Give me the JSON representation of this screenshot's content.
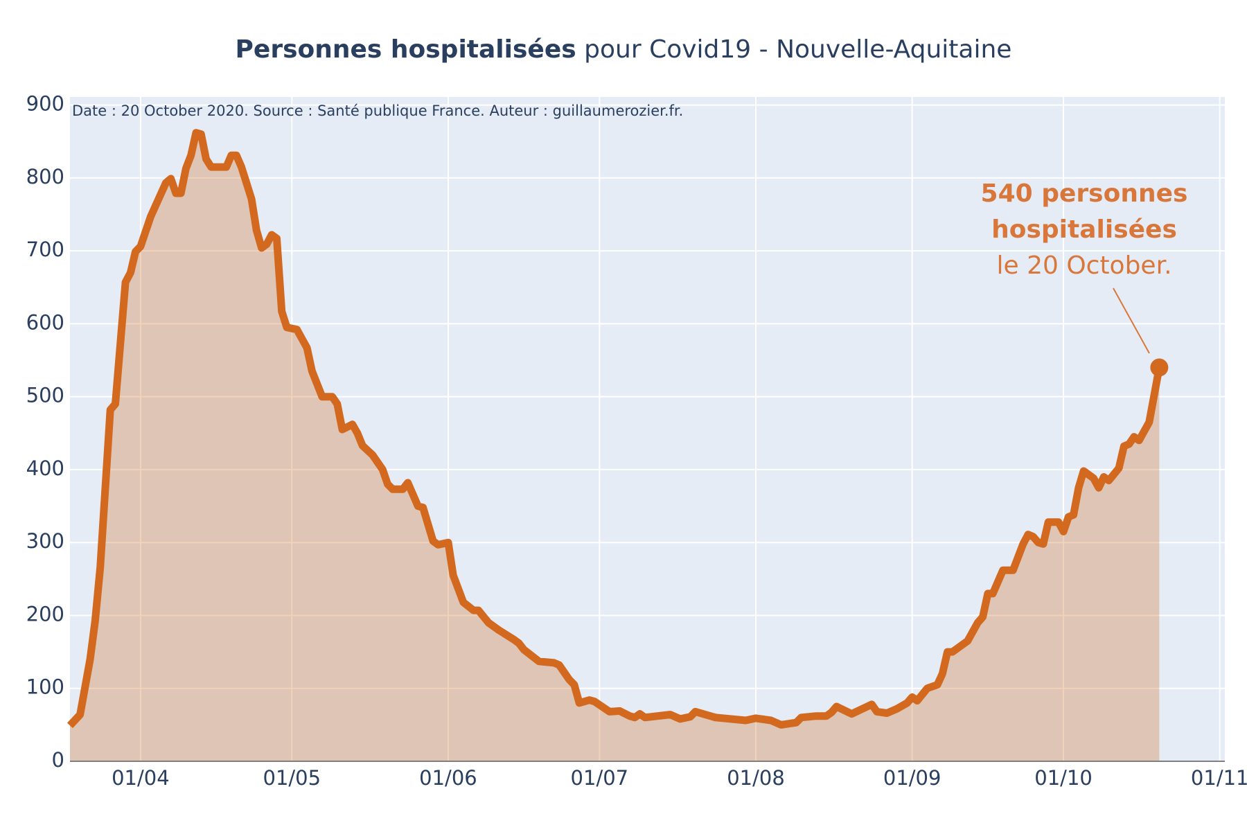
{
  "chart_data": {
    "type": "line",
    "title_bold": "Personnes hospitalisées",
    "title_rest": "pour Covid19 - Nouvelle-Aquitaine",
    "note": "Date : 20 October 2020. Source : Santé publique France. Auteur : guillaumerozier.fr.",
    "annotation": [
      "540 personnes",
      "hospitalisées",
      "le 20 October."
    ],
    "color": "#d2691e",
    "fill": true,
    "grid": true,
    "x": [
      "2020-03-18",
      "2020-03-20",
      "2020-03-22",
      "2020-03-23",
      "2020-03-24",
      "2020-03-26",
      "2020-03-27",
      "2020-03-29",
      "2020-03-30",
      "2020-03-31",
      "2020-04-01",
      "2020-04-03",
      "2020-04-06",
      "2020-04-07",
      "2020-04-08",
      "2020-04-09",
      "2020-04-10",
      "2020-04-11",
      "2020-04-12",
      "2020-04-13",
      "2020-04-14",
      "2020-04-15",
      "2020-04-18",
      "2020-04-19",
      "2020-04-20",
      "2020-04-21",
      "2020-04-23",
      "2020-04-24",
      "2020-04-25",
      "2020-04-26",
      "2020-04-27",
      "2020-04-28",
      "2020-04-29",
      "2020-04-30",
      "2020-05-02",
      "2020-05-04",
      "2020-05-05",
      "2020-05-07",
      "2020-05-09",
      "2020-05-10",
      "2020-05-11",
      "2020-05-13",
      "2020-05-14",
      "2020-05-15",
      "2020-05-17",
      "2020-05-19",
      "2020-05-20",
      "2020-05-21",
      "2020-05-23",
      "2020-05-24",
      "2020-05-26",
      "2020-05-27",
      "2020-05-29",
      "2020-05-30",
      "2020-06-01",
      "2020-06-02",
      "2020-06-04",
      "2020-06-06",
      "2020-06-07",
      "2020-06-09",
      "2020-06-11",
      "2020-06-14",
      "2020-06-15",
      "2020-06-16",
      "2020-06-19",
      "2020-06-22",
      "2020-06-23",
      "2020-06-25",
      "2020-06-26",
      "2020-06-27",
      "2020-06-29",
      "2020-06-30",
      "2020-07-03",
      "2020-07-05",
      "2020-07-07",
      "2020-07-08",
      "2020-07-09",
      "2020-07-10",
      "2020-07-15",
      "2020-07-17",
      "2020-07-19",
      "2020-07-20",
      "2020-07-22",
      "2020-07-24",
      "2020-07-30",
      "2020-08-01",
      "2020-08-04",
      "2020-08-06",
      "2020-08-09",
      "2020-08-10",
      "2020-08-13",
      "2020-08-15",
      "2020-08-16",
      "2020-08-17",
      "2020-08-20",
      "2020-08-24",
      "2020-08-25",
      "2020-08-27",
      "2020-08-29",
      "2020-08-31",
      "2020-09-01",
      "2020-09-02",
      "2020-09-04",
      "2020-09-06",
      "2020-09-07",
      "2020-09-08",
      "2020-09-09",
      "2020-09-12",
      "2020-09-14",
      "2020-09-15",
      "2020-09-16",
      "2020-09-17",
      "2020-09-19",
      "2020-09-21",
      "2020-09-23",
      "2020-09-24",
      "2020-09-25",
      "2020-09-26",
      "2020-09-27",
      "2020-09-28",
      "2020-09-30",
      "2020-10-01",
      "2020-10-02",
      "2020-10-03",
      "2020-10-04",
      "2020-10-05",
      "2020-10-07",
      "2020-10-08",
      "2020-10-09",
      "2020-10-10",
      "2020-10-12",
      "2020-10-13",
      "2020-10-14",
      "2020-10-15",
      "2020-10-16",
      "2020-10-18",
      "2020-10-20"
    ],
    "values": [
      49,
      64,
      140,
      193,
      266,
      482,
      490,
      657,
      670,
      699,
      706,
      747,
      793,
      799,
      779,
      779,
      813,
      831,
      862,
      860,
      826,
      815,
      815,
      831,
      831,
      815,
      771,
      728,
      704,
      709,
      722,
      717,
      617,
      595,
      592,
      567,
      535,
      500,
      500,
      490,
      455,
      462,
      450,
      433,
      420,
      400,
      380,
      373,
      373,
      382,
      350,
      348,
      302,
      297,
      300,
      255,
      218,
      207,
      207,
      190,
      180,
      167,
      162,
      153,
      137,
      135,
      132,
      112,
      105,
      80,
      84,
      82,
      68,
      69,
      62,
      60,
      65,
      60,
      64,
      58,
      61,
      68,
      64,
      60,
      56,
      59,
      56,
      50,
      53,
      60,
      62,
      62,
      67,
      75,
      65,
      78,
      68,
      66,
      72,
      80,
      88,
      83,
      100,
      105,
      120,
      150,
      150,
      165,
      190,
      198,
      230,
      230,
      262,
      262,
      298,
      311,
      308,
      300,
      298,
      328,
      328,
      315,
      335,
      338,
      375,
      398,
      388,
      375,
      390,
      385,
      402,
      432,
      435,
      445,
      440,
      465,
      540
    ],
    "xlim": [
      "2020-03-18",
      "2020-11-02"
    ],
    "xticks": [
      {
        "value": "2020-04-01",
        "label": "01/04"
      },
      {
        "value": "2020-05-01",
        "label": "01/05"
      },
      {
        "value": "2020-06-01",
        "label": "01/06"
      },
      {
        "value": "2020-07-01",
        "label": "01/07"
      },
      {
        "value": "2020-08-01",
        "label": "01/08"
      },
      {
        "value": "2020-09-01",
        "label": "01/09"
      },
      {
        "value": "2020-10-01",
        "label": "01/10"
      },
      {
        "value": "2020-11-01",
        "label": "01/11"
      }
    ],
    "ylim": [
      0,
      911
    ],
    "yticks": [
      0,
      100,
      200,
      300,
      400,
      500,
      600,
      700,
      800,
      900
    ]
  }
}
